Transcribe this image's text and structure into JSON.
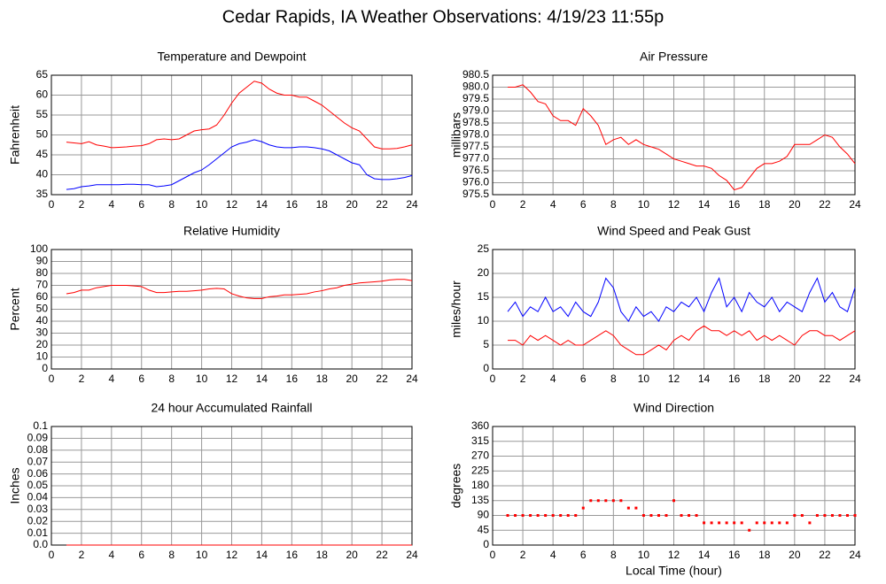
{
  "title": "Cedar Rapids, IA Weather Observations: 4/19/23 11:55p",
  "chart_data": [
    {
      "type": "line",
      "title": "Temperature and Dewpoint",
      "y_label": "Fahrenheit",
      "x": [
        1,
        1.5,
        2,
        2.5,
        3,
        3.5,
        4,
        4.5,
        5,
        5.5,
        6,
        6.5,
        7,
        7.5,
        8,
        8.5,
        9,
        9.5,
        10,
        10.5,
        11,
        11.5,
        12,
        12.5,
        13,
        13.5,
        14,
        14.5,
        15,
        15.5,
        16,
        16.5,
        17,
        17.5,
        18,
        18.5,
        19,
        19.5,
        20,
        20.5,
        21,
        21.5,
        22,
        22.5,
        23,
        23.5,
        24
      ],
      "series": [
        {
          "color": "#ff0000",
          "values": [
            48.2,
            48,
            47.8,
            48.3,
            47.5,
            47.2,
            46.8,
            46.9,
            47,
            47.2,
            47.3,
            47.8,
            48.8,
            49,
            48.8,
            49,
            50,
            51,
            51.3,
            51.5,
            52.5,
            55,
            58,
            60.5,
            62,
            63.5,
            63,
            61.5,
            60.5,
            60,
            60,
            59.5,
            59.5,
            58.5,
            57.5,
            56,
            54.5,
            53,
            51.8,
            51,
            49,
            47,
            46.5,
            46.5,
            46.6,
            47,
            47.5
          ]
        },
        {
          "color": "#0000ff",
          "values": [
            36.3,
            36.5,
            37,
            37.2,
            37.5,
            37.5,
            37.5,
            37.5,
            37.6,
            37.6,
            37.5,
            37.5,
            37,
            37.2,
            37.5,
            38.5,
            39.5,
            40.5,
            41.2,
            42.5,
            44,
            45.5,
            47,
            47.8,
            48.2,
            48.8,
            48.3,
            47.5,
            47,
            46.8,
            46.8,
            47,
            47,
            46.8,
            46.5,
            46,
            45,
            44,
            43,
            42.5,
            40,
            39,
            38.8,
            38.8,
            39,
            39.3,
            39.8
          ]
        }
      ],
      "xlim": [
        0,
        24
      ],
      "xticks": [
        0,
        2,
        4,
        6,
        8,
        10,
        12,
        14,
        16,
        18,
        20,
        22,
        24
      ],
      "ylim": [
        35,
        65
      ],
      "yticks": [
        35,
        40,
        45,
        50,
        55,
        60,
        65
      ],
      "grid": true
    },
    {
      "type": "line",
      "title": "Air Pressure",
      "y_label": "millibars",
      "x": [
        1,
        1.5,
        2,
        2.5,
        3,
        3.5,
        4,
        4.5,
        5,
        5.5,
        6,
        6.5,
        7,
        7.5,
        8,
        8.5,
        9,
        9.5,
        10,
        10.5,
        11,
        11.5,
        12,
        12.5,
        13,
        13.5,
        14,
        14.5,
        15,
        15.5,
        16,
        16.5,
        17,
        17.5,
        18,
        18.5,
        19,
        19.5,
        20,
        20.5,
        21,
        21.5,
        22,
        22.5,
        23,
        23.5,
        24
      ],
      "series": [
        {
          "color": "#ff0000",
          "values": [
            980,
            980,
            980.1,
            979.8,
            979.4,
            979.3,
            978.8,
            978.6,
            978.6,
            978.4,
            979.1,
            978.8,
            978.4,
            977.6,
            977.8,
            977.9,
            977.6,
            977.8,
            977.6,
            977.5,
            977.4,
            977.2,
            977,
            976.9,
            976.8,
            976.7,
            976.7,
            976.6,
            976.3,
            976.1,
            975.7,
            975.8,
            976.2,
            976.6,
            976.8,
            976.8,
            976.9,
            977.1,
            977.6,
            977.6,
            977.6,
            977.8,
            978,
            977.9,
            977.5,
            977.2,
            976.8
          ]
        }
      ],
      "xlim": [
        0,
        24
      ],
      "xticks": [
        0,
        2,
        4,
        6,
        8,
        10,
        12,
        14,
        16,
        18,
        20,
        22,
        24
      ],
      "ylim": [
        975.5,
        980.5
      ],
      "yticks": [
        975.5,
        {
          "value": 976,
          "label": "976.0"
        },
        976.5,
        {
          "value": 977,
          "label": "977.0"
        },
        977.5,
        {
          "value": 978,
          "label": "978.0"
        },
        978.5,
        {
          "value": 979,
          "label": "979.0"
        },
        979.5,
        {
          "value": 980,
          "label": "980.0"
        },
        980.5
      ],
      "grid": true
    },
    {
      "type": "line",
      "title": "Relative Humidity",
      "y_label": "Percent",
      "x": [
        1,
        1.5,
        2,
        2.5,
        3,
        3.5,
        4,
        4.5,
        5,
        5.5,
        6,
        6.5,
        7,
        7.5,
        8,
        8.5,
        9,
        9.5,
        10,
        10.5,
        11,
        11.5,
        12,
        12.5,
        13,
        13.5,
        14,
        14.5,
        15,
        15.5,
        16,
        16.5,
        17,
        17.5,
        18,
        18.5,
        19,
        19.5,
        20,
        20.5,
        21,
        21.5,
        22,
        22.5,
        23,
        23.5,
        24
      ],
      "series": [
        {
          "color": "#ff0000",
          "values": [
            63,
            64,
            66,
            66,
            68,
            69,
            70,
            70,
            70,
            69.5,
            69,
            66,
            64,
            64,
            64.5,
            65,
            65,
            65.5,
            66,
            67,
            67.5,
            67,
            63,
            61,
            59.5,
            59,
            59,
            60.5,
            61,
            62,
            62,
            62.5,
            63,
            64.5,
            65.5,
            67,
            68,
            70,
            71,
            72,
            72.5,
            73,
            73.5,
            74.5,
            75,
            75,
            74
          ]
        }
      ],
      "xlim": [
        0,
        24
      ],
      "xticks": [
        0,
        2,
        4,
        6,
        8,
        10,
        12,
        14,
        16,
        18,
        20,
        22,
        24
      ],
      "ylim": [
        0,
        100
      ],
      "yticks": [
        0,
        10,
        20,
        30,
        40,
        50,
        60,
        70,
        80,
        90,
        100
      ],
      "grid": true
    },
    {
      "type": "line",
      "title": "Wind Speed and Peak Gust",
      "y_label": "miles/hour",
      "x": [
        1,
        1.5,
        2,
        2.5,
        3,
        3.5,
        4,
        4.5,
        5,
        5.5,
        6,
        6.5,
        7,
        7.5,
        8,
        8.5,
        9,
        9.5,
        10,
        10.5,
        11,
        11.5,
        12,
        12.5,
        13,
        13.5,
        14,
        14.5,
        15,
        15.5,
        16,
        16.5,
        17,
        17.5,
        18,
        18.5,
        19,
        19.5,
        20,
        20.5,
        21,
        21.5,
        22,
        22.5,
        23,
        23.5,
        24
      ],
      "series": [
        {
          "color": "#0000ff",
          "values": [
            12,
            14,
            11,
            13,
            12,
            15,
            12,
            13,
            11,
            14,
            12,
            11,
            14,
            19,
            17,
            12,
            10,
            13,
            11,
            12,
            10,
            13,
            12,
            14,
            13,
            15,
            12,
            16,
            19,
            13,
            15,
            12,
            16,
            14,
            13,
            15,
            12,
            14,
            13,
            12,
            16,
            19,
            14,
            16,
            13,
            12,
            17
          ]
        },
        {
          "color": "#ff0000",
          "values": [
            6,
            6,
            5,
            7,
            6,
            7,
            6,
            5,
            6,
            5,
            5,
            6,
            7,
            8,
            7,
            5,
            4,
            3,
            3,
            4,
            5,
            4,
            6,
            7,
            6,
            8,
            9,
            8,
            8,
            7,
            8,
            7,
            8,
            6,
            7,
            6,
            7,
            6,
            5,
            7,
            8,
            8,
            7,
            7,
            6,
            7,
            8
          ]
        }
      ],
      "xlim": [
        0,
        24
      ],
      "xticks": [
        0,
        2,
        4,
        6,
        8,
        10,
        12,
        14,
        16,
        18,
        20,
        22,
        24
      ],
      "ylim": [
        0,
        25
      ],
      "yticks": [
        0,
        5,
        10,
        15,
        20,
        25
      ],
      "grid": true
    },
    {
      "type": "line",
      "title": "24 hour Accumulated Rainfall",
      "y_label": "Inches",
      "x": [
        1,
        1.5,
        2,
        2.5,
        3,
        3.5,
        4,
        4.5,
        5,
        5.5,
        6,
        6.5,
        7,
        7.5,
        8,
        8.5,
        9,
        9.5,
        10,
        10.5,
        11,
        11.5,
        12,
        12.5,
        13,
        13.5,
        14,
        14.5,
        15,
        15.5,
        16,
        16.5,
        17,
        17.5,
        18,
        18.5,
        19,
        19.5,
        20,
        20.5,
        21,
        21.5,
        22,
        22.5,
        23,
        23.5,
        24
      ],
      "series": [
        {
          "color": "#ff0000",
          "values": [
            0,
            0,
            0,
            0,
            0,
            0,
            0,
            0,
            0,
            0,
            0,
            0,
            0,
            0,
            0,
            0,
            0,
            0,
            0,
            0,
            0,
            0,
            0,
            0,
            0,
            0,
            0,
            0,
            0,
            0,
            0,
            0,
            0,
            0,
            0,
            0,
            0,
            0,
            0,
            0,
            0,
            0,
            0,
            0,
            0,
            0,
            0
          ]
        }
      ],
      "xlim": [
        0,
        24
      ],
      "xticks": [
        0,
        2,
        4,
        6,
        8,
        10,
        12,
        14,
        16,
        18,
        20,
        22,
        24
      ],
      "ylim": [
        0,
        0.1
      ],
      "yticks": [
        {
          "value": 0,
          "label": "0.0"
        },
        0.01,
        0.02,
        0.03,
        0.04,
        0.05,
        0.06,
        0.07,
        0.08,
        0.09,
        0.1
      ],
      "grid": true
    },
    {
      "type": "scatter",
      "title": "Wind Direction",
      "y_label": "degrees",
      "x_label": "Local Time (hour)",
      "x": [
        1,
        1.5,
        2,
        2.5,
        3,
        3.5,
        4,
        4.5,
        5,
        5.5,
        6,
        6.5,
        7,
        7.5,
        8,
        8.5,
        9,
        9.5,
        10,
        10.5,
        11,
        11.5,
        12,
        12.5,
        13,
        13.5,
        14,
        14.5,
        15,
        15.5,
        16,
        16.5,
        17,
        17.5,
        18,
        18.5,
        19,
        19.5,
        20,
        20.5,
        21,
        21.5,
        22,
        22.5,
        23,
        23.5,
        24
      ],
      "series": [
        {
          "color": "#ff0000",
          "values": [
            90,
            90,
            90,
            90,
            90,
            90,
            90,
            90,
            90,
            90,
            112.5,
            135,
            135,
            135,
            135,
            135,
            112.5,
            112.5,
            90,
            90,
            90,
            90,
            135,
            90,
            90,
            90,
            67.5,
            67.5,
            67.5,
            67.5,
            67.5,
            67.5,
            45,
            67.5,
            67.5,
            67.5,
            67.5,
            67.5,
            90,
            90,
            67.5,
            90,
            90,
            90,
            90,
            90,
            90
          ]
        }
      ],
      "xlim": [
        0,
        24
      ],
      "xticks": [
        0,
        2,
        4,
        6,
        8,
        10,
        12,
        14,
        16,
        18,
        20,
        22,
        24
      ],
      "ylim": [
        0,
        360
      ],
      "yticks": [
        0,
        45,
        90,
        135,
        180,
        225,
        270,
        315,
        360
      ],
      "grid": true
    }
  ]
}
